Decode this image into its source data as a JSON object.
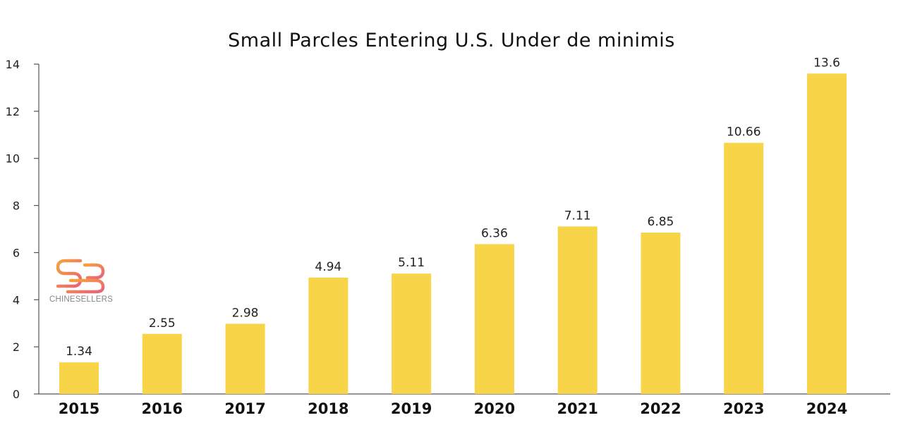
{
  "chart_data": {
    "type": "bar",
    "title": "Small Parcles Entering U.S. Under de minimis",
    "xlabel": "",
    "ylabel": "",
    "categories": [
      "2015",
      "2016",
      "2017",
      "2018",
      "2019",
      "2020",
      "2021",
      "2022",
      "2023",
      "2024"
    ],
    "values": [
      1.34,
      2.55,
      2.98,
      4.94,
      5.11,
      6.36,
      7.11,
      6.85,
      10.66,
      13.6
    ],
    "data_labels": [
      "1.34",
      "2.55",
      "2.98",
      "4.94",
      "5.11",
      "6.36",
      "7.11",
      "6.85",
      "10.66",
      "13.6"
    ],
    "ylim": [
      0,
      14
    ],
    "yticks": [
      0,
      2,
      4,
      6,
      8,
      10,
      12,
      14
    ],
    "grid": false,
    "legend": "none",
    "bar_color": "#F8D448",
    "axis_color": "#555555"
  },
  "logo": {
    "text": "CHINESELLERS",
    "colors": [
      "#F5A33B",
      "#E8627A"
    ]
  }
}
